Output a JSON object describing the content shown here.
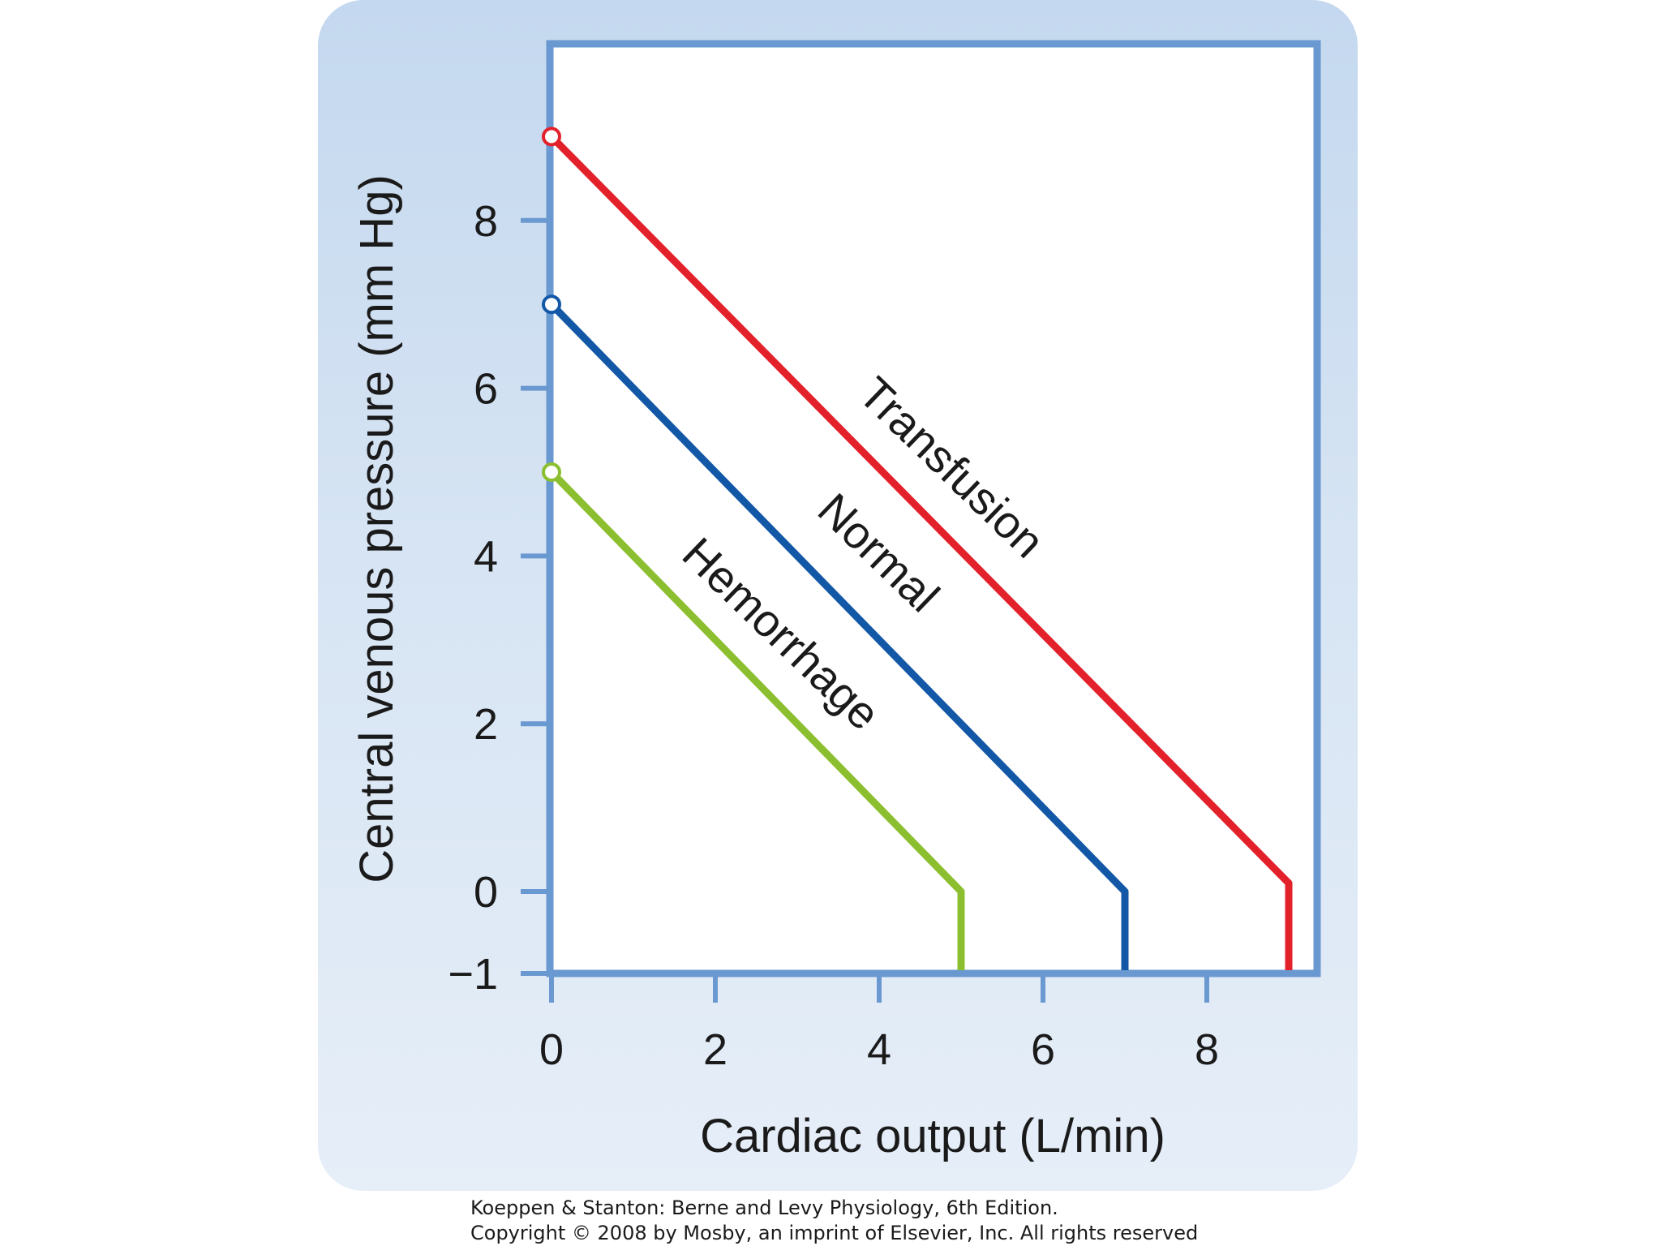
{
  "chart_data": {
    "type": "line",
    "title": "",
    "xlabel": "Cardiac output (L/min)",
    "ylabel": "Central venous pressure (mm Hg)",
    "xlim": [
      0,
      9.3
    ],
    "ylim": [
      -1,
      9.3
    ],
    "x_ticks": [
      "0",
      "2",
      "4",
      "6",
      "8"
    ],
    "x_tick_values": [
      0,
      2,
      4,
      6,
      8
    ],
    "y_ticks": [
      "−1",
      "0",
      "2",
      "4",
      "6",
      "8"
    ],
    "y_tick_values": [
      -1,
      0,
      2,
      4,
      6,
      8
    ],
    "grid": false,
    "series": [
      {
        "name": "Transfusion",
        "color": "#e3212b",
        "points": [
          [
            0,
            9
          ],
          [
            9,
            0.1
          ],
          [
            9,
            -1
          ]
        ]
      },
      {
        "name": "Normal",
        "color": "#1358a7",
        "points": [
          [
            0,
            7
          ],
          [
            7,
            0
          ],
          [
            7,
            -1
          ]
        ]
      },
      {
        "name": "Hemorrhage",
        "color": "#8cbf2f",
        "points": [
          [
            0,
            5
          ],
          [
            5,
            0
          ],
          [
            5,
            -1
          ]
        ]
      }
    ]
  },
  "credit": {
    "line1": "Koeppen & Stanton: Berne and Levy Physiology, 6th Edition.",
    "line2": "Copyright © 2008 by Mosby, an imprint of Elsevier, Inc. All rights reserved"
  },
  "colors": {
    "frame": "#6a98d0",
    "panel": "#cddff2"
  }
}
